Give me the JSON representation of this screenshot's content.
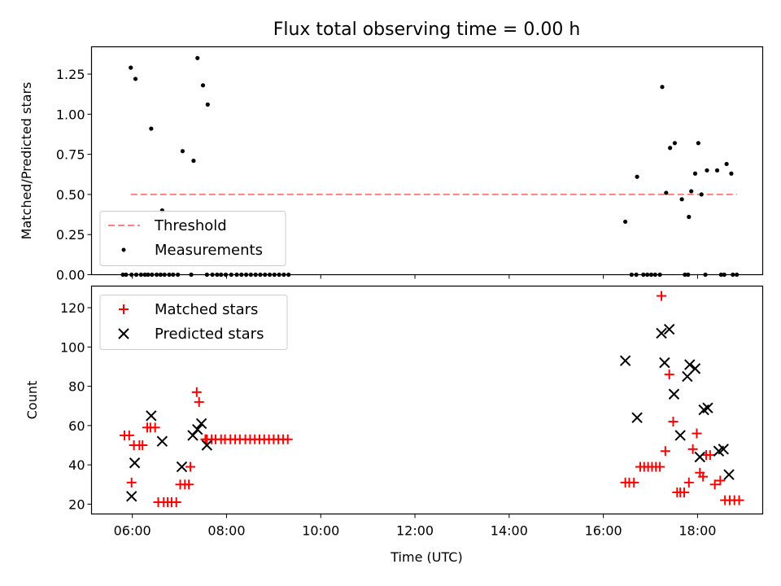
{
  "title": "Flux total observing time = 0.00 h",
  "xlabel": "Time (UTC)",
  "chart_data": [
    {
      "type": "scatter",
      "ylabel": "Matched/Predicted stars",
      "ylim": [
        0,
        1.42
      ],
      "yticks": [
        0.0,
        0.25,
        0.5,
        0.75,
        1.0,
        1.25
      ],
      "ytick_labels": [
        "0.00",
        "0.25",
        "0.50",
        "0.75",
        "1.00",
        "1.25"
      ],
      "xlim": [
        "05:08",
        "19:23"
      ],
      "threshold": {
        "name": "Threshold",
        "value": 0.5,
        "x_start": "05:58",
        "x_end": "18:50",
        "color": "#ff7f7f"
      },
      "series": [
        {
          "name": "Measurements",
          "color": "#000000",
          "x": [
            "05:58",
            "06:04",
            "06:24",
            "06:38",
            "07:04",
            "07:18",
            "07:23",
            "07:30",
            "07:36",
            "05:48",
            "05:52",
            "05:59",
            "06:05",
            "06:11",
            "06:16",
            "06:20",
            "06:25",
            "06:31",
            "06:36",
            "06:41",
            "06:47",
            "06:52",
            "06:58",
            "07:15",
            "07:35",
            "07:42",
            "07:48",
            "07:53",
            "07:59",
            "08:06",
            "08:13",
            "08:19",
            "08:25",
            "08:31",
            "08:37",
            "08:43",
            "08:49",
            "08:55",
            "09:01",
            "09:07",
            "09:13",
            "09:19",
            "16:28",
            "16:43",
            "17:15",
            "17:20",
            "17:25",
            "17:31",
            "17:40",
            "17:49",
            "17:52",
            "17:57",
            "18:01",
            "18:05",
            "18:12",
            "18:25",
            "18:37",
            "18:43",
            "16:36",
            "16:42",
            "16:51",
            "16:56",
            "17:01",
            "17:06",
            "17:12",
            "17:44",
            "17:48",
            "18:10",
            "18:30",
            "18:34",
            "18:45",
            "18:50"
          ],
          "y": [
            1.29,
            1.22,
            0.91,
            0.4,
            0.77,
            0.71,
            1.35,
            1.18,
            1.06,
            0,
            0,
            0,
            0,
            0,
            0,
            0,
            0,
            0,
            0,
            0,
            0,
            0,
            0,
            0,
            0,
            0,
            0,
            0,
            0,
            0,
            0,
            0,
            0,
            0,
            0,
            0,
            0,
            0,
            0,
            0,
            0,
            0,
            0.33,
            0.61,
            1.17,
            0.51,
            0.79,
            0.82,
            0.47,
            0.36,
            0.52,
            0.63,
            0.82,
            0.5,
            0.65,
            0.65,
            0.69,
            0.63,
            0,
            0,
            0,
            0,
            0,
            0,
            0,
            0,
            0,
            0,
            0,
            0,
            0,
            0
          ]
        }
      ]
    },
    {
      "type": "scatter",
      "ylabel": "Count",
      "ylim": [
        15,
        131
      ],
      "yticks": [
        20,
        40,
        60,
        80,
        100,
        120
      ],
      "ytick_labels": [
        "20",
        "40",
        "60",
        "80",
        "100",
        "120"
      ],
      "xlim": [
        "05:08",
        "19:23"
      ],
      "xticks": [
        "06:00",
        "08:00",
        "10:00",
        "12:00",
        "14:00",
        "16:00",
        "18:00"
      ],
      "series": [
        {
          "name": "Matched stars",
          "color": "#ff0000",
          "marker": "+",
          "x": [
            "05:50",
            "05:56",
            "05:59",
            "06:02",
            "06:09",
            "06:13",
            "06:19",
            "06:23",
            "06:29",
            "06:33",
            "06:40",
            "06:45",
            "06:50",
            "06:56",
            "07:01",
            "07:07",
            "07:12",
            "07:14",
            "07:22",
            "07:25",
            "07:33",
            "07:35",
            "07:41",
            "07:46",
            "07:53",
            "07:58",
            "08:05",
            "08:11",
            "08:17",
            "08:24",
            "08:30",
            "08:36",
            "08:42",
            "08:48",
            "08:54",
            "09:00",
            "09:06",
            "09:12",
            "09:18",
            "16:28",
            "16:33",
            "16:39",
            "16:47",
            "16:52",
            "16:57",
            "17:02",
            "17:07",
            "17:12",
            "17:14",
            "17:19",
            "17:24",
            "17:29",
            "17:34",
            "17:38",
            "17:43",
            "17:49",
            "17:54",
            "17:59",
            "18:03",
            "18:07",
            "18:11",
            "18:16",
            "18:22",
            "18:29",
            "18:35",
            "18:41",
            "18:47",
            "18:53"
          ],
          "y": [
            55,
            55,
            31,
            50,
            50,
            50,
            59,
            59,
            59,
            21,
            21,
            21,
            21,
            21,
            30,
            30,
            30,
            39,
            77,
            72,
            53,
            53,
            53,
            53,
            53,
            53,
            53,
            53,
            53,
            53,
            53,
            53,
            53,
            53,
            53,
            53,
            53,
            53,
            53,
            31,
            31,
            31,
            39,
            39,
            39,
            39,
            39,
            39,
            126,
            47,
            86,
            62,
            26,
            26,
            26,
            31,
            48,
            56,
            36,
            34,
            45,
            45,
            30,
            32,
            22,
            22,
            22,
            22
          ]
        },
        {
          "name": "Predicted stars",
          "color": "#000000",
          "marker": "x",
          "x": [
            "05:59",
            "06:03",
            "06:24",
            "06:38",
            "07:03",
            "07:17",
            "07:23",
            "07:28",
            "07:35",
            "16:28",
            "16:43",
            "17:14",
            "17:18",
            "17:24",
            "17:30",
            "17:38",
            "17:47",
            "17:50",
            "17:57",
            "18:03",
            "18:08",
            "18:13",
            "18:27",
            "18:33",
            "18:40"
          ],
          "y": [
            24,
            41,
            65,
            52,
            39,
            55,
            58,
            61,
            50,
            93,
            64,
            107,
            92,
            109,
            76,
            55,
            85,
            91,
            89,
            44,
            68,
            69,
            47,
            48,
            35
          ]
        }
      ]
    }
  ],
  "legend_top": {
    "items": [
      "Threshold",
      "Measurements"
    ],
    "placement": "lower-left"
  },
  "legend_bottom": {
    "items": [
      "Matched stars",
      "Predicted stars"
    ],
    "placement": "upper-left"
  }
}
